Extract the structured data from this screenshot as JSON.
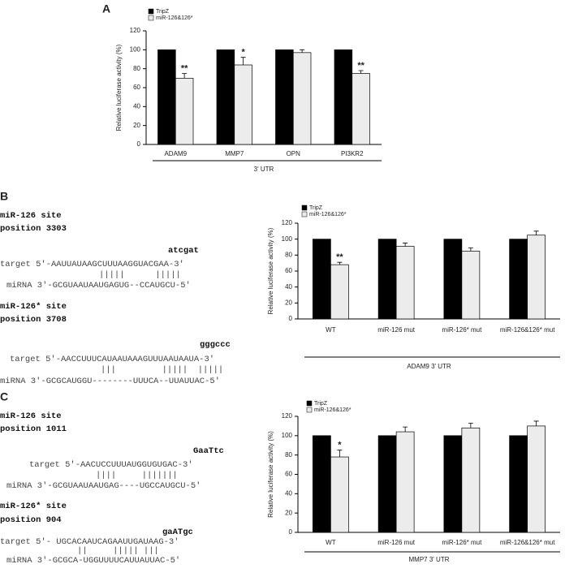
{
  "chart_data": [
    {
      "type": "bar",
      "panel_label": "A",
      "ylabel": "Relative luciferase activity (%)",
      "xlabel": "3' UTR",
      "categories": [
        "ADAM9",
        "MMP7",
        "OPN",
        "PI3KR2"
      ],
      "series": [
        {
          "name": "TripZ",
          "color": "#000000",
          "values": [
            100,
            100,
            100,
            100
          ]
        },
        {
          "name": "miR-126&126*",
          "color": "#ececec",
          "values": [
            70,
            84,
            97,
            75
          ],
          "errors": [
            5,
            8,
            3,
            3
          ],
          "annotations": [
            "**",
            "*",
            null,
            "**"
          ]
        }
      ],
      "ylim": [
        0,
        120
      ],
      "yticks": [
        0,
        20,
        40,
        60,
        80,
        100,
        120
      ]
    },
    {
      "type": "bar",
      "ylabel": "Relative luciferase activity (%)",
      "xlabel": "ADAM9 3' UTR",
      "categories": [
        "WT",
        "miR-126  mut",
        "miR-126* mut",
        "miR-126&126* mut"
      ],
      "series": [
        {
          "name": "TripZ",
          "color": "#000000",
          "values": [
            100,
            100,
            100,
            100
          ]
        },
        {
          "name": "miR-126&126*",
          "color": "#ececec",
          "values": [
            68,
            91,
            85,
            105
          ],
          "errors": [
            3,
            4,
            4,
            5
          ],
          "annotations": [
            "**",
            null,
            null,
            null
          ]
        }
      ],
      "ylim": [
        0,
        120
      ],
      "yticks": [
        0,
        20,
        40,
        60,
        80,
        100,
        120
      ]
    },
    {
      "type": "bar",
      "ylabel": "Relative luciferase activity (%)",
      "xlabel": "MMP7 3' UTR",
      "categories": [
        "WT",
        "miR-126 mut",
        "miR-126* mut",
        "miR-126&126* mut"
      ],
      "series": [
        {
          "name": "TripZ",
          "color": "#000000",
          "values": [
            100,
            100,
            100,
            100
          ]
        },
        {
          "name": "miR-126&126*",
          "color": "#ececec",
          "values": [
            78,
            104,
            108,
            110
          ],
          "errors": [
            7,
            5,
            5,
            5
          ],
          "annotations": [
            "*",
            null,
            null,
            null
          ]
        }
      ],
      "ylim": [
        0,
        120
      ],
      "yticks": [
        0,
        20,
        40,
        60,
        80,
        100,
        120
      ]
    }
  ],
  "sequences": [
    {
      "panel_label": "B",
      "sites": [
        {
          "title": "miR-126 site",
          "position": "position 3303",
          "mutation": "atcgat",
          "target": "target 5'-AAUUAUAAGCUUUAAGGUACGAA-3'",
          "pairing": "|||||      |||||",
          "mirna": "miRNA 3'-GCGUAAUAAUGAGUG--CCAUGCU-5'"
        },
        {
          "title": "miR-126* site",
          "position": "position 3708",
          "mutation": "gggccc",
          "target": "target 5'-AACCUUUCAUAAUAAAGUUUAAUAAUA-3'",
          "pairing": "|||         |||||  |||||",
          "mirna": "miRNA 3'-GCGCAUGGU--------UUUCA--UUAUUAC-5'"
        }
      ]
    },
    {
      "panel_label": "C",
      "sites": [
        {
          "title": "miR-126 site",
          "position": "position 1011",
          "mutation": "GaaTtc",
          "target": "target 5'-AACUCCUUUAUGGUGUGAC-3'",
          "pairing": "||||     |||||||",
          "mirna": "miRNA 3'-GCGUAAUAAUGAG----UGCCAUGCU-5'"
        },
        {
          "title": "miR-126* site",
          "position": "position 904",
          "mutation": "gaATgc",
          "target": "target 5'- UGCACAAUCAGAAUUGAUAAG-3'",
          "pairing": "||     ||||| |||",
          "mirna": "miRNA 3'-GCGCA-UGGUUUUCAUUAUUAC-5'"
        }
      ]
    }
  ]
}
